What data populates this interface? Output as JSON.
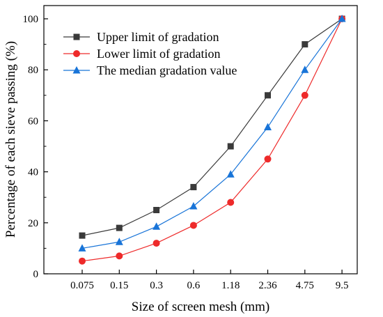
{
  "chart_data": {
    "type": "line",
    "categories": [
      "0.075",
      "0.15",
      "0.3",
      "0.6",
      "1.18",
      "2.36",
      "4.75",
      "9.5"
    ],
    "series": [
      {
        "name": "Upper limit of gradation",
        "values": [
          15,
          18,
          25,
          34,
          50,
          70,
          90,
          100
        ],
        "color": "#3a3a3a",
        "marker": "square"
      },
      {
        "name": "Lower limit of gradation",
        "values": [
          5,
          7,
          12,
          19,
          28,
          45,
          70,
          100
        ],
        "color": "#ee2a2a",
        "marker": "circle"
      },
      {
        "name": "The median gradation value",
        "values": [
          10,
          12.5,
          18.5,
          26.5,
          39,
          57.5,
          80,
          100
        ],
        "color": "#1874d8",
        "marker": "triangle"
      }
    ],
    "xlabel": "Size of screen mesh (mm)",
    "ylabel": "Percentage of each sieve passing (%)",
    "ylim": [
      0,
      100
    ],
    "yticks": [
      "0",
      "20",
      "40",
      "60",
      "80",
      "100"
    ],
    "grid": false,
    "legend_position": "top-left"
  }
}
